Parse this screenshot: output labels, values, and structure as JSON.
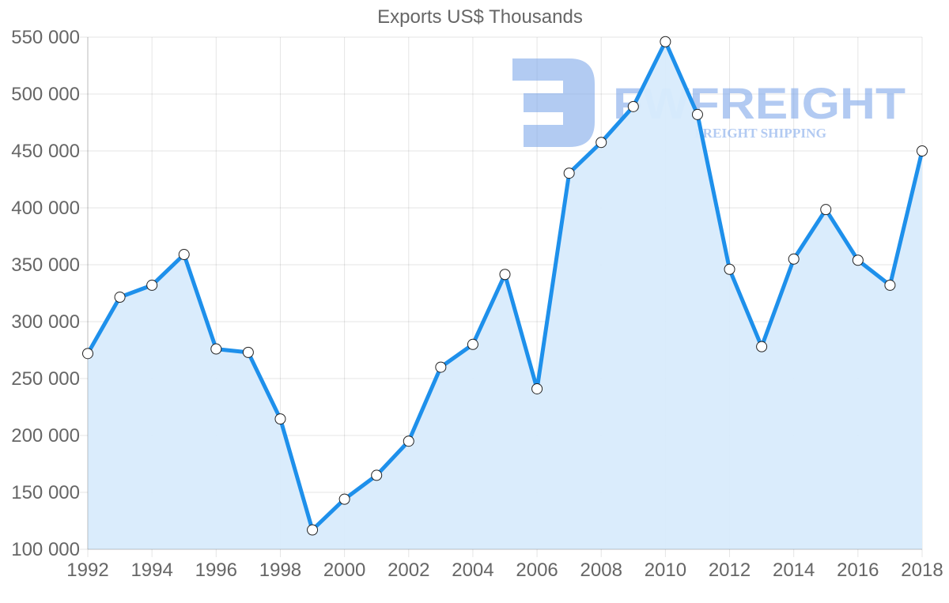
{
  "chart_data": {
    "type": "line",
    "title": "Exports US$ Thousands",
    "xlabel": "",
    "ylabel": "",
    "x": [
      1992,
      1993,
      1994,
      1995,
      1996,
      1997,
      1998,
      1999,
      2000,
      2001,
      2002,
      2003,
      2004,
      2005,
      2006,
      2007,
      2008,
      2009,
      2010,
      2011,
      2012,
      2013,
      2014,
      2015,
      2016,
      2017,
      2018
    ],
    "series": [
      {
        "name": "Exports US$ Thousands",
        "values": [
          272000,
          321500,
          332000,
          359000,
          276000,
          273000,
          214500,
          117000,
          144000,
          165000,
          195000,
          260000,
          280000,
          341500,
          241000,
          430500,
          457500,
          489000,
          546000,
          482000,
          346000,
          278000,
          355000,
          398500,
          354000,
          332000,
          450000
        ],
        "line_color": "#1e90eb",
        "fill_color": "#d8ebfc",
        "fill": true
      }
    ],
    "ylim": [
      100000,
      550000
    ],
    "yticks": [
      100000,
      150000,
      200000,
      250000,
      300000,
      350000,
      400000,
      450000,
      500000,
      550000
    ],
    "ytick_labels": [
      "100 000",
      "150 000",
      "200 000",
      "250 000",
      "300 000",
      "350 000",
      "400 000",
      "450 000",
      "500 000",
      "550 000"
    ],
    "xticks": [
      1992,
      1994,
      1996,
      1998,
      2000,
      2002,
      2004,
      2006,
      2008,
      2010,
      2012,
      2014,
      2016,
      2018
    ],
    "xtick_labels": [
      "1992",
      "1994",
      "1996",
      "1998",
      "2000",
      "2002",
      "2004",
      "2006",
      "2008",
      "2010",
      "2012",
      "2014",
      "2016",
      "2018"
    ],
    "grid": true,
    "legend": null
  },
  "watermark": {
    "brand": "FWFREIGHT",
    "tagline": "FREIGHT SHIPPING",
    "color": "#7fa8ea"
  }
}
